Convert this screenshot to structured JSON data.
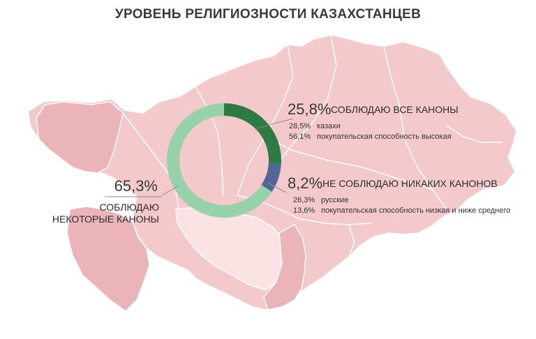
{
  "title": "УРОВЕНЬ РЕЛИГИОЗНОСТИ КАЗАХСТАНЦЕВ",
  "colors": {
    "map_fill": "#f3c9cb",
    "map_dark": "#eab4b8",
    "map_light": "#fbe3e4",
    "border": "#ffffff",
    "all_canons": "#2e7a43",
    "no_canons": "#51679a",
    "some_canons": "#97d1aa",
    "leader": "#8a8a8a"
  },
  "chart_data": {
    "type": "pie",
    "style": "donut",
    "slices": [
      {
        "value": 25.8,
        "value_label": "25,8%",
        "label": "СОБЛЮДАЮ ВСЕ КАНОНЫ",
        "color": "#2e7a43",
        "details": [
          {
            "value": "28,5%",
            "text": "казахи"
          },
          {
            "value": "56,1%",
            "text": "покупательская способность высокая"
          }
        ]
      },
      {
        "value": 8.2,
        "value_label": "8,2%",
        "label": "НЕ СОБЛЮДАЮ НИКАКИХ КАНОНОВ",
        "color": "#51679a",
        "details": [
          {
            "value": "26,3%",
            "text": "русские"
          },
          {
            "value": "13,6%",
            "text": "покупательская способность низкая и ниже среднего"
          }
        ]
      },
      {
        "value": 65.3,
        "value_label": "65,3%",
        "label_lines": [
          "СОБЛЮДАЮ",
          "НЕКОТОРЫЕ КАНОНЫ"
        ],
        "color": "#97d1aa"
      }
    ]
  }
}
